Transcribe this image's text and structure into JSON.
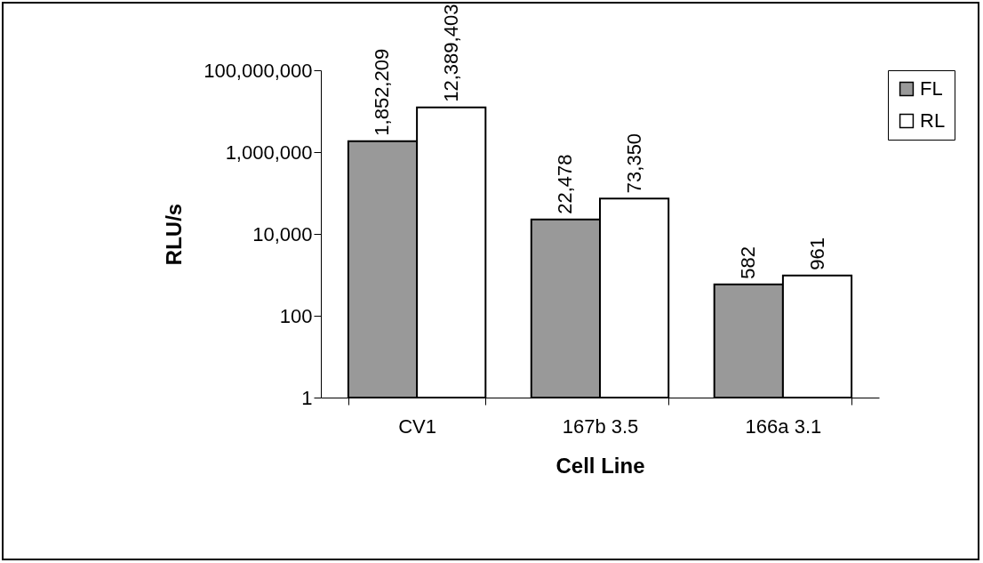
{
  "chart_data": {
    "type": "bar",
    "xlabel": "Cell Line",
    "ylabel": "RLU/s",
    "categories": [
      "CV1",
      "167b 3.5",
      "166a 3.1"
    ],
    "series": [
      {
        "name": "FL",
        "color": "#999999",
        "values": [
          1852209,
          22478,
          582
        ],
        "value_labels": [
          "1,852,209",
          "22,478",
          "582"
        ]
      },
      {
        "name": "RL",
        "color": "#ffffff",
        "values": [
          12389403,
          73350,
          961
        ],
        "value_labels": [
          "12,389,403",
          "73,350",
          "961"
        ]
      }
    ],
    "log": true,
    "ylim": [
      1,
      100000000
    ],
    "yticks": [
      1,
      100,
      {
        "value": 10000,
        "label": "10,000"
      },
      {
        "value": 1000000,
        "label": "1,000,000"
      },
      {
        "value": 100000000,
        "label": "100,000,000"
      }
    ],
    "legend": "right",
    "grid": false
  }
}
